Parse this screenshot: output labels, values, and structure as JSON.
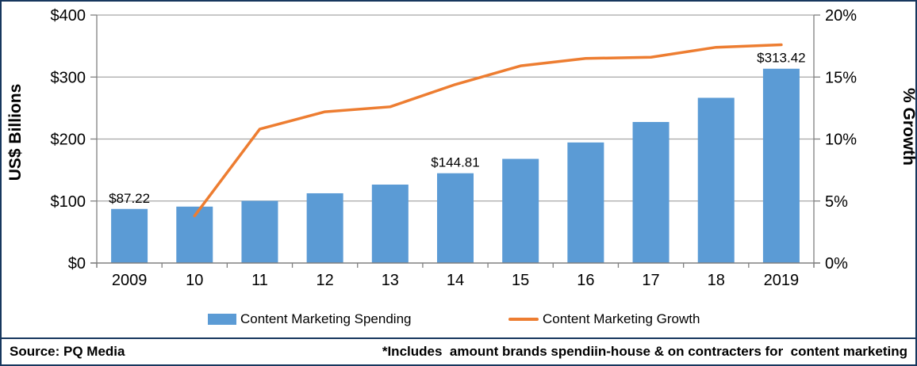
{
  "chart_data": {
    "type": "bar",
    "subtype": "bar-line combo, dual axis",
    "categories": [
      "2009",
      "10",
      "11",
      "12",
      "13",
      "14",
      "15",
      "16",
      "17",
      "18",
      "2019"
    ],
    "series": [
      {
        "name": "Content Marketing Spending",
        "chart": "bar",
        "axis": "left",
        "color": "#5B9BD5",
        "values": [
          87.22,
          91.0,
          100.3,
          112.5,
          126.5,
          144.81,
          168.0,
          194.5,
          227.5,
          266.5,
          313.42
        ]
      },
      {
        "name": "Content Marketing Growth",
        "chart": "line",
        "axis": "right",
        "color": "#ED7D31",
        "values": [
          null,
          3.8,
          10.8,
          12.2,
          12.6,
          14.4,
          15.9,
          16.5,
          16.6,
          17.4,
          17.6
        ]
      }
    ],
    "data_labels": [
      {
        "category_index": 0,
        "text": "$87.22"
      },
      {
        "category_index": 5,
        "text": "$144.81"
      },
      {
        "category_index": 10,
        "text": "$313.42"
      }
    ],
    "left_axis": {
      "title": "US$ Billions",
      "min": 0,
      "max": 400,
      "tick_step": 100,
      "ticks": [
        "$0",
        "$100",
        "$200",
        "$300",
        "$400"
      ]
    },
    "right_axis": {
      "title": "% Growth",
      "min": 0,
      "max": 20,
      "tick_step": 5,
      "ticks": [
        "0%",
        "5%",
        "10%",
        "15%",
        "20%"
      ]
    },
    "grid": true,
    "legend_position": "bottom"
  },
  "footer": {
    "source": "Source: PQ Media",
    "footnote": "*Includes  amount brands spendiin-house & on contracters for  content marketing"
  },
  "colors": {
    "bar": "#5B9BD5",
    "line": "#ED7D31",
    "grid": "#A6A6A6",
    "axis": "#808080",
    "border": "#17375E",
    "text": "#000000"
  }
}
